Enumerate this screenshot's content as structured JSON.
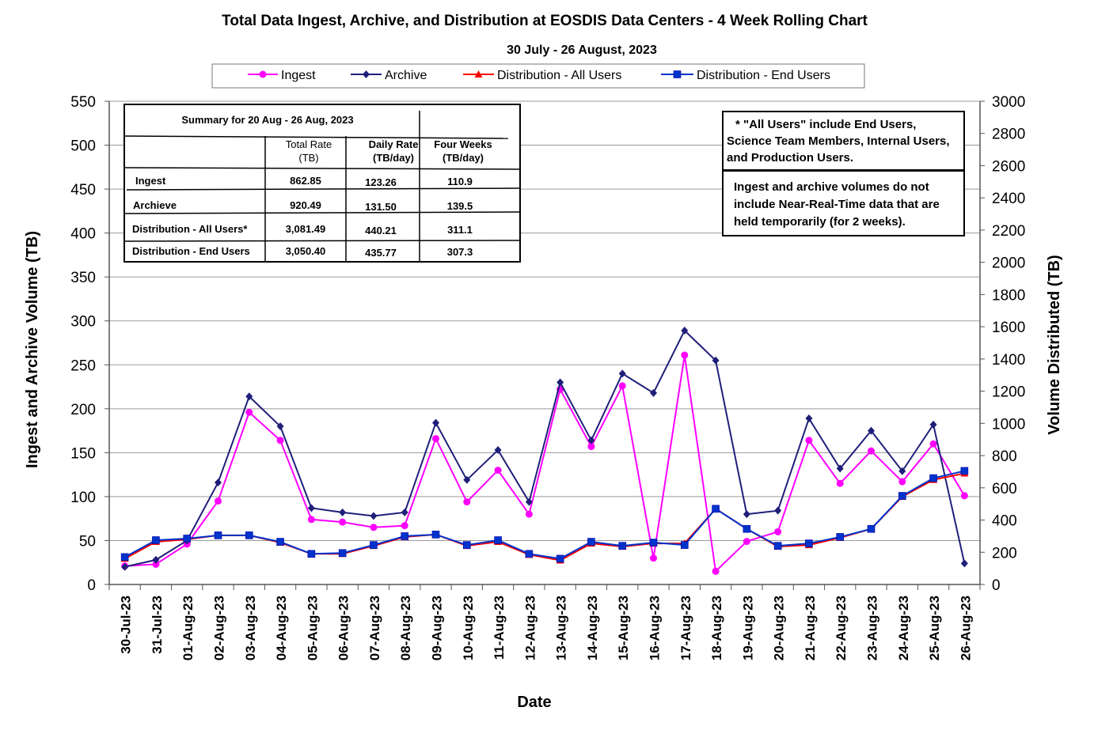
{
  "chart_data": {
    "type": "line",
    "title": "Total Data Ingest, Archive, and  Distribution at EOSDIS Data Centers - 4 Week Rolling Chart",
    "subtitle": "30 July   - 26 August, 2023",
    "xlabel": "Date",
    "ylabel_left": "Ingest and Archive Volume (TB)",
    "ylabel_right": "Volume Distributed (TB)",
    "ylim_left": [
      0,
      550
    ],
    "ylim_right": [
      0,
      3000
    ],
    "yticks_left": [
      "0",
      "50",
      "100",
      "150",
      "200",
      "250",
      "300",
      "350",
      "400",
      "450",
      "500",
      "550"
    ],
    "yticks_right": [
      "0",
      "200",
      "400",
      "600",
      "800",
      "1000",
      "1200",
      "1400",
      "1600",
      "1800",
      "2000",
      "2200",
      "2400",
      "2600",
      "2800",
      "3000"
    ],
    "grid": true,
    "legend_position": "top",
    "categories": [
      "30-Jul-23",
      "31-Jul-23",
      "01-Aug-23",
      "02-Aug-23",
      "03-Aug-23",
      "04-Aug-23",
      "05-Aug-23",
      "06-Aug-23",
      "07-Aug-23",
      "08-Aug-23",
      "09-Aug-23",
      "10-Aug-23",
      "11-Aug-23",
      "12-Aug-23",
      "13-Aug-23",
      "14-Aug-23",
      "15-Aug-23",
      "16-Aug-23",
      "17-Aug-23",
      "18-Aug-23",
      "19-Aug-23",
      "20-Aug-23",
      "21-Aug-23",
      "22-Aug-23",
      "23-Aug-23",
      "24-Aug-23",
      "25-Aug-23",
      "26-Aug-23"
    ],
    "series": [
      {
        "name": "Ingest",
        "axis": "left",
        "color": "#FF00FF",
        "marker": "circle",
        "values": [
          21,
          23,
          46,
          95,
          196,
          164,
          74,
          71,
          65,
          67,
          166,
          94,
          130,
          80,
          222,
          157,
          226,
          30,
          261,
          15,
          49,
          60,
          164,
          115,
          152,
          117,
          160,
          101
        ]
      },
      {
        "name": "Archive",
        "axis": "left",
        "color": "#1F1F7A",
        "marker": "diamond",
        "values": [
          20,
          28,
          50,
          116,
          214,
          180,
          87,
          82,
          78,
          82,
          184,
          119,
          153,
          94,
          230,
          164,
          240,
          218,
          289,
          255,
          80,
          84,
          189,
          132,
          175,
          129,
          182,
          24
        ]
      },
      {
        "name": "Distribution - All Users",
        "axis": "right",
        "color": "#FF0000",
        "marker": "triangle",
        "values": [
          160,
          265,
          280,
          305,
          305,
          260,
          190,
          190,
          240,
          295,
          310,
          240,
          265,
          185,
          150,
          255,
          235,
          255,
          255,
          470,
          345,
          235,
          245,
          290,
          345,
          545,
          650,
          690
        ]
      },
      {
        "name": "Distribution - End Users",
        "axis": "right",
        "color": "#0033CC",
        "marker": "square",
        "values": [
          170,
          275,
          285,
          305,
          305,
          265,
          190,
          195,
          245,
          300,
          310,
          245,
          275,
          190,
          160,
          265,
          240,
          260,
          245,
          470,
          345,
          240,
          255,
          295,
          345,
          550,
          660,
          705
        ]
      }
    ]
  },
  "summary_table": {
    "title": "Summary  for  20  Aug  -  26  Aug,  2023",
    "headers": [
      "Total  Rate\n(TB)",
      "Daily Rate\n(TB/day)",
      "Four Weeks\n(TB/day)"
    ],
    "rows": [
      {
        "label": "Ingest",
        "total": "862.85",
        "daily": "123.26",
        "four_weeks": "110.9"
      },
      {
        "label": "Archieve",
        "total": "920.49",
        "daily": "131.50",
        "four_weeks": "139.5"
      },
      {
        "label": "Distribution - All Users*",
        "total": "3,081.49",
        "daily": "440.21",
        "four_weeks": "311.1"
      },
      {
        "label": "Distribution - End Users",
        "total": "3,050.40",
        "daily": "435.77",
        "four_weeks": "307.3"
      }
    ]
  },
  "note_box_1": [
    "* \"All Users\" include End Users,",
    "Science Team Members,  Internal Users,",
    "and Production Users."
  ],
  "note_box_2": [
    "Ingest and archive volumes do not",
    "include Near-Real-Time data that are",
    "held temporarily (for 2 weeks)."
  ]
}
